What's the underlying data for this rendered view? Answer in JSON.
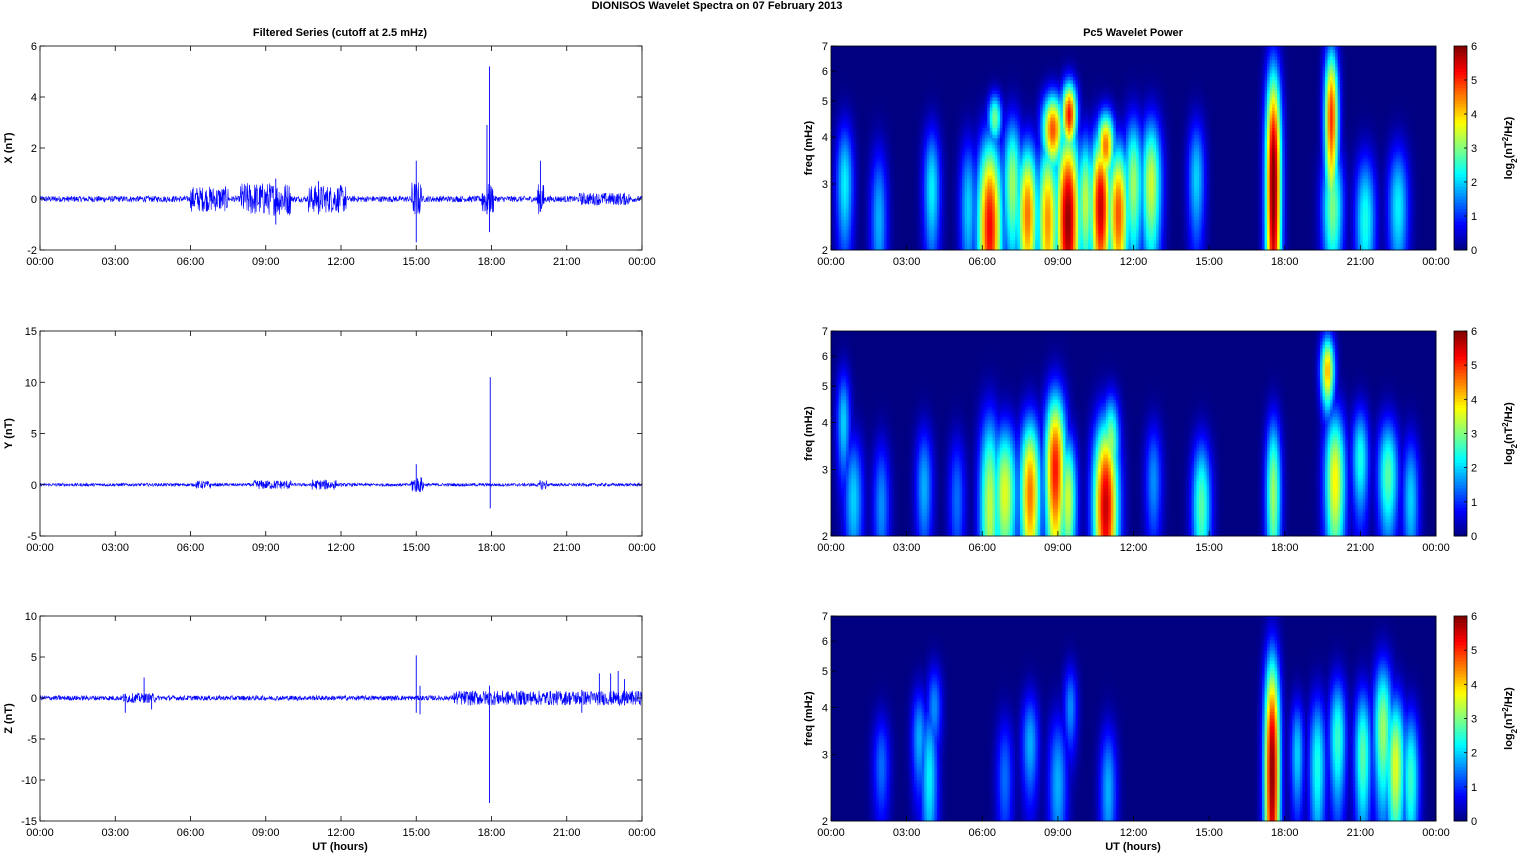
{
  "figure": {
    "suptitle": "DIONISOS Wavelet Spectra on 07 February  2013",
    "left_title": "Filtered Series (cutoff at 2.5 mHz)",
    "right_title": "Pc5 Wavelet Power",
    "xlabel": "UT (hours)",
    "freq_label": "freq (mHz)",
    "colorbar_label_parts": [
      "log",
      "2",
      "(nT",
      "2",
      "/Hz)"
    ],
    "time_ticks": [
      "00:00",
      "03:00",
      "06:00",
      "09:00",
      "12:00",
      "15:00",
      "18:00",
      "21:00",
      "00:00"
    ],
    "colormap": "jet"
  },
  "chart_data": [
    {
      "type": "line",
      "ylabel": "X (nT)",
      "xlim_hours": [
        0,
        24
      ],
      "ylim": [
        -2,
        6
      ],
      "yticks": [
        -2,
        0,
        2,
        4,
        6
      ],
      "line_color": "#0000ff",
      "baseline_amplitude": 0.12,
      "spikes": [
        {
          "t": 15.0,
          "max": 1.5,
          "min": -1.7
        },
        {
          "t": 17.82,
          "max": 2.9,
          "min": -0.6
        },
        {
          "t": 17.92,
          "max": 5.2,
          "min": -1.3
        },
        {
          "t": 19.95,
          "max": 1.5,
          "min": -0.5
        },
        {
          "t": 9.4,
          "max": 0.8,
          "min": -1.0
        },
        {
          "t": 11.1,
          "max": 0.7,
          "min": -0.6
        }
      ],
      "active_intervals": [
        {
          "from": 6.0,
          "to": 7.5,
          "amp": 0.5
        },
        {
          "from": 8.0,
          "to": 10.0,
          "amp": 0.65
        },
        {
          "from": 10.7,
          "to": 12.2,
          "amp": 0.55
        },
        {
          "from": 14.8,
          "to": 15.2,
          "amp": 0.7
        },
        {
          "from": 17.6,
          "to": 18.1,
          "amp": 0.6
        },
        {
          "from": 19.8,
          "to": 20.1,
          "amp": 0.6
        },
        {
          "from": 21.5,
          "to": 23.5,
          "amp": 0.25
        }
      ]
    },
    {
      "type": "line",
      "ylabel": "Y (nT)",
      "xlim_hours": [
        0,
        24
      ],
      "ylim": [
        -5,
        15
      ],
      "yticks": [
        -5,
        0,
        5,
        10,
        15
      ],
      "line_color": "#0000ff",
      "baseline_amplitude": 0.15,
      "spikes": [
        {
          "t": 15.0,
          "max": 2.0,
          "min": -0.5
        },
        {
          "t": 17.95,
          "max": 10.5,
          "min": -2.3
        }
      ],
      "active_intervals": [
        {
          "from": 6.2,
          "to": 6.8,
          "amp": 0.4
        },
        {
          "from": 8.5,
          "to": 10.0,
          "amp": 0.45
        },
        {
          "from": 10.8,
          "to": 11.8,
          "amp": 0.5
        },
        {
          "from": 14.8,
          "to": 15.3,
          "amp": 0.8
        },
        {
          "from": 19.9,
          "to": 20.2,
          "amp": 0.5
        }
      ]
    },
    {
      "type": "line",
      "ylabel": "Z (nT)",
      "xlim_hours": [
        0,
        24
      ],
      "ylim": [
        -15,
        10
      ],
      "yticks": [
        -15,
        -10,
        -5,
        0,
        5,
        10
      ],
      "line_color": "#0000ff",
      "baseline_amplitude": 0.3,
      "spikes": [
        {
          "t": 3.4,
          "max": 0.5,
          "min": -1.8
        },
        {
          "t": 4.15,
          "max": 2.5,
          "min": -0.5
        },
        {
          "t": 4.45,
          "max": 0.3,
          "min": -1.4
        },
        {
          "t": 15.0,
          "max": 5.2,
          "min": -1.8
        },
        {
          "t": 15.15,
          "max": 1.5,
          "min": -2.0
        },
        {
          "t": 17.92,
          "max": 1.5,
          "min": -12.8
        },
        {
          "t": 21.6,
          "max": 1.0,
          "min": -1.8
        },
        {
          "t": 22.3,
          "max": 3.0,
          "min": -0.6
        },
        {
          "t": 22.75,
          "max": 3.0,
          "min": -0.5
        },
        {
          "t": 23.05,
          "max": 3.3,
          "min": -0.7
        },
        {
          "t": 23.3,
          "max": 2.3,
          "min": -0.9
        }
      ],
      "active_intervals": [
        {
          "from": 3.3,
          "to": 4.6,
          "amp": 0.6
        },
        {
          "from": 16.5,
          "to": 24.0,
          "amp": 0.9
        }
      ]
    },
    {
      "type": "heatmap",
      "ylabel": "freq (mHz)",
      "y_scale": "log",
      "xlim_hours": [
        0,
        24
      ],
      "ylim_mhz": [
        2,
        7
      ],
      "yticks": [
        2,
        3,
        4,
        5,
        6,
        7
      ],
      "clim": [
        0,
        6
      ],
      "cticks": [
        0,
        1,
        2,
        3,
        4,
        5,
        6
      ],
      "blobs": [
        {
          "t": 0.55,
          "f": 3.0,
          "peak": 2.2,
          "wt": 0.25,
          "wf": 0.9
        },
        {
          "t": 1.9,
          "f": 2.4,
          "peak": 1.8,
          "wt": 0.25,
          "wf": 0.9
        },
        {
          "t": 4.0,
          "f": 2.9,
          "peak": 2.2,
          "wt": 0.25,
          "wf": 0.9
        },
        {
          "t": 5.45,
          "f": 2.6,
          "peak": 2.0,
          "wt": 0.25,
          "wf": 0.9
        },
        {
          "t": 6.3,
          "f": 2.3,
          "peak": 5.3,
          "wt": 0.35,
          "wf": 1.1
        },
        {
          "t": 6.5,
          "f": 4.5,
          "peak": 3.0,
          "wt": 0.2,
          "wf": 0.5
        },
        {
          "t": 7.2,
          "f": 3.0,
          "peak": 3.2,
          "wt": 0.28,
          "wf": 1.0
        },
        {
          "t": 7.8,
          "f": 2.5,
          "peak": 4.6,
          "wt": 0.3,
          "wf": 0.9
        },
        {
          "t": 8.6,
          "f": 2.4,
          "peak": 4.4,
          "wt": 0.3,
          "wf": 1.0
        },
        {
          "t": 8.8,
          "f": 4.2,
          "peak": 4.8,
          "wt": 0.3,
          "wf": 0.7
        },
        {
          "t": 9.4,
          "f": 2.4,
          "peak": 5.9,
          "wt": 0.35,
          "wf": 1.2
        },
        {
          "t": 9.45,
          "f": 4.6,
          "peak": 5.2,
          "wt": 0.22,
          "wf": 0.7
        },
        {
          "t": 10.1,
          "f": 2.7,
          "peak": 3.4,
          "wt": 0.25,
          "wf": 0.9
        },
        {
          "t": 10.7,
          "f": 2.6,
          "peak": 5.6,
          "wt": 0.3,
          "wf": 1.0
        },
        {
          "t": 10.9,
          "f": 3.8,
          "peak": 4.6,
          "wt": 0.25,
          "wf": 0.6
        },
        {
          "t": 11.4,
          "f": 2.5,
          "peak": 4.8,
          "wt": 0.3,
          "wf": 0.9
        },
        {
          "t": 12.0,
          "f": 3.0,
          "peak": 3.2,
          "wt": 0.28,
          "wf": 1.0
        },
        {
          "t": 12.7,
          "f": 3.0,
          "peak": 3.5,
          "wt": 0.3,
          "wf": 1.0
        },
        {
          "t": 14.5,
          "f": 3.1,
          "peak": 2.0,
          "wt": 0.25,
          "wf": 0.9
        },
        {
          "t": 17.55,
          "f": 3.0,
          "peak": 6.2,
          "wt": 0.22,
          "wf": 2.0
        },
        {
          "t": 19.85,
          "f": 4.5,
          "peak": 5.0,
          "wt": 0.2,
          "wf": 1.6
        },
        {
          "t": 19.9,
          "f": 2.6,
          "peak": 3.0,
          "wt": 0.3,
          "wf": 0.8
        },
        {
          "t": 21.2,
          "f": 2.4,
          "peak": 2.4,
          "wt": 0.3,
          "wf": 0.8
        },
        {
          "t": 22.5,
          "f": 2.6,
          "peak": 2.2,
          "wt": 0.3,
          "wf": 0.8
        }
      ]
    },
    {
      "type": "heatmap",
      "ylabel": "freq (mHz)",
      "y_scale": "log",
      "xlim_hours": [
        0,
        24
      ],
      "ylim_mhz": [
        2,
        7
      ],
      "yticks": [
        2,
        3,
        4,
        5,
        6,
        7
      ],
      "clim": [
        0,
        6
      ],
      "cticks": [
        0,
        1,
        2,
        3,
        4,
        5,
        6
      ],
      "blobs": [
        {
          "t": 0.5,
          "f": 4.0,
          "peak": 2.0,
          "wt": 0.2,
          "wf": 1.0
        },
        {
          "t": 0.9,
          "f": 2.5,
          "peak": 2.0,
          "wt": 0.28,
          "wf": 0.8
        },
        {
          "t": 2.0,
          "f": 2.4,
          "peak": 1.6,
          "wt": 0.25,
          "wf": 0.8
        },
        {
          "t": 3.7,
          "f": 2.7,
          "peak": 1.8,
          "wt": 0.25,
          "wf": 0.8
        },
        {
          "t": 5.0,
          "f": 2.5,
          "peak": 1.4,
          "wt": 0.25,
          "wf": 0.8
        },
        {
          "t": 6.3,
          "f": 2.4,
          "peak": 3.4,
          "wt": 0.3,
          "wf": 1.2
        },
        {
          "t": 6.9,
          "f": 2.6,
          "peak": 3.6,
          "wt": 0.35,
          "wf": 0.9
        },
        {
          "t": 7.9,
          "f": 2.6,
          "peak": 4.6,
          "wt": 0.3,
          "wf": 1.0
        },
        {
          "t": 8.9,
          "f": 3.0,
          "peak": 5.2,
          "wt": 0.3,
          "wf": 1.2
        },
        {
          "t": 9.4,
          "f": 2.5,
          "peak": 3.5,
          "wt": 0.25,
          "wf": 0.8
        },
        {
          "t": 10.9,
          "f": 2.4,
          "peak": 5.6,
          "wt": 0.35,
          "wf": 1.1
        },
        {
          "t": 11.1,
          "f": 3.5,
          "peak": 3.2,
          "wt": 0.25,
          "wf": 0.8
        },
        {
          "t": 12.8,
          "f": 2.8,
          "peak": 1.6,
          "wt": 0.25,
          "wf": 0.8
        },
        {
          "t": 14.7,
          "f": 2.4,
          "peak": 2.8,
          "wt": 0.28,
          "wf": 0.8
        },
        {
          "t": 17.55,
          "f": 2.6,
          "peak": 3.2,
          "wt": 0.22,
          "wf": 1.0
        },
        {
          "t": 19.7,
          "f": 5.5,
          "peak": 4.2,
          "wt": 0.2,
          "wf": 0.9
        },
        {
          "t": 20.0,
          "f": 2.8,
          "peak": 3.8,
          "wt": 0.3,
          "wf": 1.0
        },
        {
          "t": 21.0,
          "f": 3.2,
          "peak": 2.4,
          "wt": 0.25,
          "wf": 0.8
        },
        {
          "t": 22.1,
          "f": 2.9,
          "peak": 2.8,
          "wt": 0.3,
          "wf": 0.8
        },
        {
          "t": 23.0,
          "f": 2.5,
          "peak": 2.0,
          "wt": 0.25,
          "wf": 0.8
        }
      ]
    },
    {
      "type": "heatmap",
      "ylabel": "freq (mHz)",
      "y_scale": "log",
      "xlim_hours": [
        0,
        24
      ],
      "ylim_mhz": [
        2,
        7
      ],
      "yticks": [
        2,
        3,
        4,
        5,
        6,
        7
      ],
      "clim": [
        0,
        6
      ],
      "cticks": [
        0,
        1,
        2,
        3,
        4,
        5,
        6
      ],
      "blobs": [
        {
          "t": 2.0,
          "f": 2.8,
          "peak": 1.4,
          "wt": 0.25,
          "wf": 0.7
        },
        {
          "t": 3.5,
          "f": 3.3,
          "peak": 1.8,
          "wt": 0.22,
          "wf": 0.8
        },
        {
          "t": 3.9,
          "f": 2.6,
          "peak": 2.2,
          "wt": 0.25,
          "wf": 1.0
        },
        {
          "t": 4.1,
          "f": 4.0,
          "peak": 1.6,
          "wt": 0.22,
          "wf": 0.8
        },
        {
          "t": 6.9,
          "f": 2.6,
          "peak": 1.4,
          "wt": 0.25,
          "wf": 0.8
        },
        {
          "t": 7.9,
          "f": 3.2,
          "peak": 1.8,
          "wt": 0.25,
          "wf": 0.8
        },
        {
          "t": 9.0,
          "f": 2.5,
          "peak": 1.8,
          "wt": 0.28,
          "wf": 0.9
        },
        {
          "t": 9.5,
          "f": 4.0,
          "peak": 1.6,
          "wt": 0.2,
          "wf": 0.8
        },
        {
          "t": 11.0,
          "f": 2.4,
          "peak": 1.8,
          "wt": 0.25,
          "wf": 0.8
        },
        {
          "t": 17.5,
          "f": 2.7,
          "peak": 6.0,
          "wt": 0.22,
          "wf": 1.8
        },
        {
          "t": 18.5,
          "f": 3.0,
          "peak": 2.0,
          "wt": 0.2,
          "wf": 0.8
        },
        {
          "t": 19.3,
          "f": 2.8,
          "peak": 2.4,
          "wt": 0.25,
          "wf": 1.0
        },
        {
          "t": 20.1,
          "f": 3.3,
          "peak": 2.6,
          "wt": 0.25,
          "wf": 1.0
        },
        {
          "t": 21.1,
          "f": 3.0,
          "peak": 2.8,
          "wt": 0.25,
          "wf": 1.0
        },
        {
          "t": 21.9,
          "f": 3.5,
          "peak": 3.2,
          "wt": 0.28,
          "wf": 1.2
        },
        {
          "t": 22.4,
          "f": 2.8,
          "peak": 3.6,
          "wt": 0.28,
          "wf": 1.0
        },
        {
          "t": 23.0,
          "f": 2.6,
          "peak": 2.6,
          "wt": 0.25,
          "wf": 0.9
        }
      ]
    }
  ]
}
